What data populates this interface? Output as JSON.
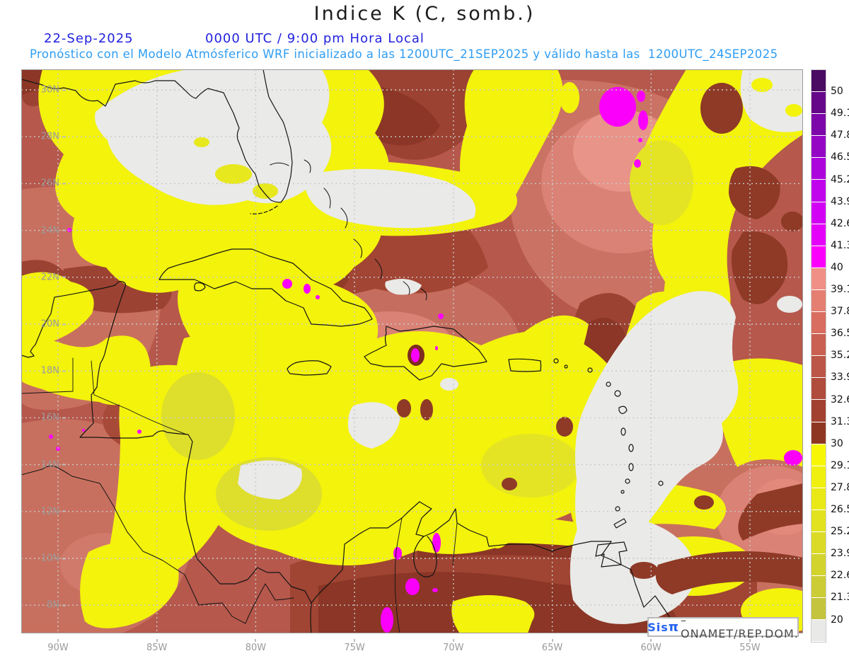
{
  "header": {
    "title": "Indice K (C, somb.)",
    "date": "22-Sep-2025",
    "time": "0000 UTC / 9:00 pm Hora Local",
    "subtitle": "Pronóstico con el Modelo Atmósferico WRF inicializado a las 1200UTC_21SEP2025 y válido hasta las  1200UTC_24SEP2025"
  },
  "map": {
    "lat_labels": [
      "30N",
      "28N",
      "26N",
      "24N",
      "22N",
      "20N",
      "18N",
      "16N",
      "14N",
      "12N",
      "10N",
      "8N"
    ],
    "lon_labels": [
      "90W",
      "85W",
      "80W",
      "75W",
      "70W",
      "65W",
      "60W",
      "55W"
    ]
  },
  "colorbar": {
    "tick_labels": [
      "50",
      "49.1",
      "47.8",
      "46.5",
      "45.2",
      "43.9",
      "42.6",
      "41.3",
      "40",
      "39.1",
      "37.8",
      "36.5",
      "35.2",
      "33.9",
      "32.6",
      "31.3",
      "30",
      "29.1",
      "27.8",
      "26.5",
      "25.2",
      "23.9",
      "22.6",
      "21.3",
      "20"
    ],
    "segment_colors": [
      "#4b0b63",
      "#66078a",
      "#7d07a8",
      "#9406c4",
      "#ab05dc",
      "#c004ec",
      "#d203f4",
      "#e402f9",
      "#fb00fb",
      "#f08f85",
      "#e47f72",
      "#d86d60",
      "#c96052",
      "#bc5647",
      "#b04c3b",
      "#a24130",
      "#8f3623",
      "#f7f705",
      "#f0f00f",
      "#e9e917",
      "#e2e21f",
      "#dbdb27",
      "#d3d32e",
      "#cccc36",
      "#c4c43e",
      "#e9e9e7"
    ]
  },
  "watermark": {
    "brand": "Sis",
    "pi": "π",
    "separator": "– ",
    "org": "ONAMET/REP.DOM."
  },
  "colors": {
    "date_blue": "#2222dd",
    "subtitle_blue": "#2f9df3",
    "axis_label_gray": "#9a9a9a",
    "magenta_extreme": "#fa00fa",
    "yellow_low": "#f3f30c",
    "brick_high": "#b6584c",
    "dark_brown": "#8b3726",
    "below_scale_gray": "#eaeae8",
    "coastline": "#141414"
  }
}
